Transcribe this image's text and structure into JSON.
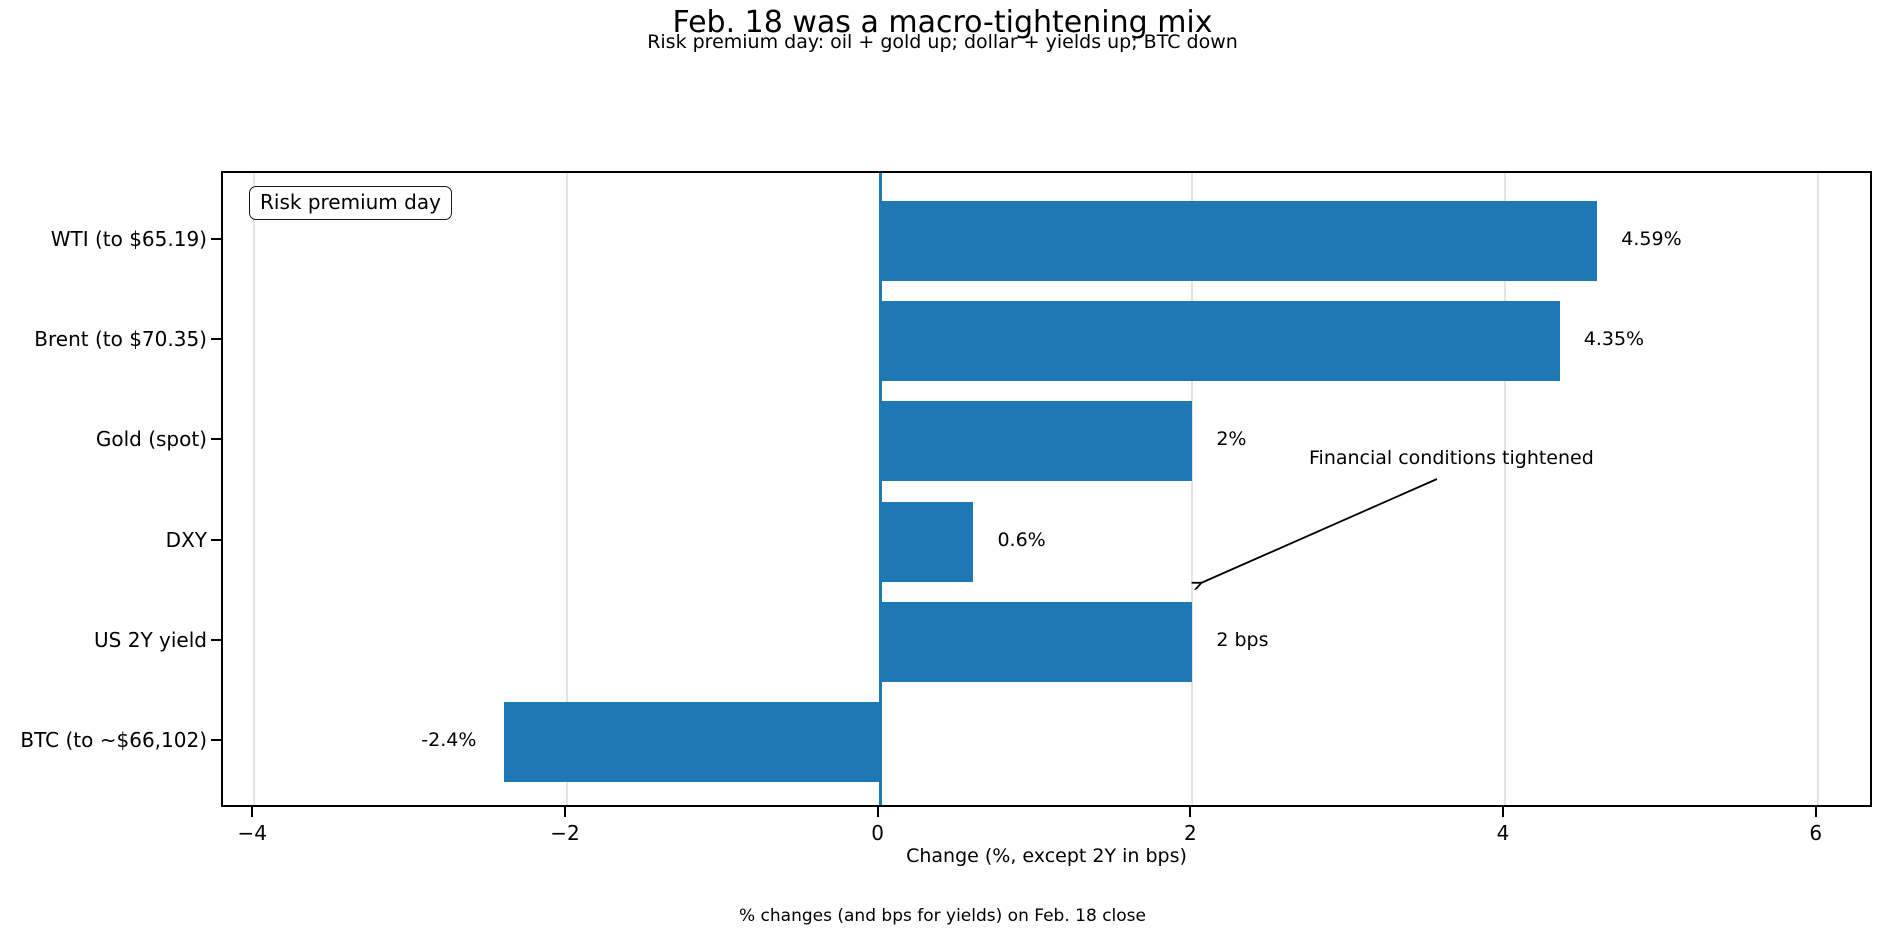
{
  "title": "Feb. 18 was a macro-tightening mix",
  "subtitle": "Risk premium day: oil + gold up; dollar + yields up; BTC down",
  "legend_box": "Risk premium day",
  "annotation": {
    "text": "Financial conditions tightened"
  },
  "footer": "% changes (and bps for yields) on Feb. 18 close",
  "chart_data": {
    "type": "bar",
    "orientation": "horizontal",
    "title": "Feb. 18 was a macro-tightening mix",
    "subtitle": "Risk premium day: oil + gold up; dollar + yields up; BTC down",
    "categories": [
      "WTI (to $65.19)",
      "Brent (to $70.35)",
      "Gold (spot)",
      "DXY",
      "US 2Y yield",
      "BTC (to ~$66,102)"
    ],
    "values": [
      4.59,
      4.35,
      2,
      0.6,
      2,
      -2.4
    ],
    "bar_labels": [
      "4.59%",
      "4.35%",
      "2%",
      "0.6%",
      "2 bps",
      "-2.4%"
    ],
    "xlabel": "Change (%, except 2Y in bps)",
    "ylabel": "",
    "x_tick_values": [
      -4,
      -2,
      0,
      2,
      4,
      6
    ],
    "x_tick_labels": [
      "−4",
      "−2",
      "0",
      "2",
      "4",
      "6"
    ],
    "xlim": [
      -4.2,
      6.36
    ],
    "grid": true,
    "grid_axis": "x",
    "zero_reference_line": 0,
    "legend_position": "upper left",
    "legend_text": "Risk premium day",
    "annotation_text": "Financial conditions tightened",
    "caption": "% changes (and bps for yields) on Feb. 18 close",
    "bar_color": "#1f77b4",
    "zero_line_color": "#1f77b4",
    "grid_color": "#e4e4e4",
    "text_color": "#000000"
  }
}
